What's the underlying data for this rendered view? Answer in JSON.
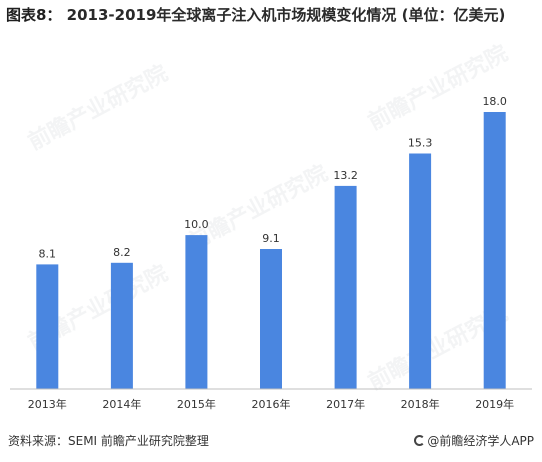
{
  "title": {
    "fig_no": "图表8：",
    "text": "2013-2019年全球离子注入机市场规模变化情况 (单位：亿美元)"
  },
  "chart_data": {
    "type": "bar",
    "categories": [
      "2013年",
      "2014年",
      "2015年",
      "2016年",
      "2017年",
      "2018年",
      "2019年"
    ],
    "values": [
      8.1,
      8.2,
      10.0,
      9.1,
      13.2,
      15.3,
      18.0
    ],
    "value_labels": [
      "8.1",
      "8.2",
      "10.0",
      "9.1",
      "13.2",
      "15.3",
      "18.0"
    ],
    "title": "2013-2019年全球离子注入机市场规模变化情况 (单位：亿美元)",
    "xlabel": "",
    "ylabel": "",
    "ylim": [
      0,
      18.0
    ],
    "grid": false,
    "legend": "none",
    "bar_color": "#4a86e0"
  },
  "footer": {
    "source": "资料来源：SEMI 前瞻产业研究院整理",
    "brand": "@前瞻经济学人APP"
  },
  "watermark": {
    "text": "前瞻产业研究院"
  },
  "colors": {
    "bar": "#4a86e0",
    "axis": "#bfbfbf",
    "text": "#333333"
  }
}
